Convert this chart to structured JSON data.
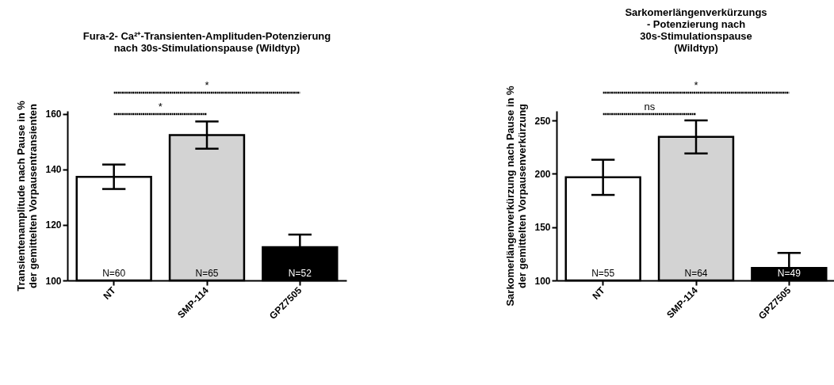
{
  "chart_data": [
    {
      "type": "bar",
      "title": "Fura-2- Ca²⁺-Transienten-Amplituden-Potenzierung\nnach 30s-Stimulationspause (Wildtyp)",
      "ylabel": "Transientenamplitude nach Pause in %\nder gemittelten Vorpausentransienten",
      "categories": [
        "NT",
        "SMP-114",
        "GPZ7505"
      ],
      "values": [
        137.3,
        152.3,
        112.0
      ],
      "errors": [
        4.4,
        4.9,
        [
          112.0,
          116.5
        ]
      ],
      "colors": [
        "#ffffff",
        "#d3d3d3",
        "#000000"
      ],
      "ylim": [
        100,
        161
      ],
      "yticks": [
        100,
        120,
        140,
        160
      ],
      "annotations": [
        "*",
        "*",
        "N=60",
        "N=65",
        "N=52"
      ],
      "grid": false,
      "legend": false
    },
    {
      "type": "bar",
      "title": "Sarkomerlängenverkürzungs\n- Potenzierung nach\n30s-Stimulationspause\n(Wildtyp)",
      "ylabel": "Sarkomerlängenverkürzung nach Pause in %\nder gemittelten Vorpausenverkürzung",
      "categories": [
        "NT",
        "SMP-114",
        "GPZ7505"
      ],
      "values": [
        196.7,
        234.6,
        111.7
      ],
      "errors": [
        16.5,
        15.5,
        [
          111.7,
          125.8
        ]
      ],
      "colors": [
        "#ffffff",
        "#d3d3d3",
        "#000000"
      ],
      "ylim": [
        100,
        259
      ],
      "yticks": [
        100,
        150,
        200,
        250
      ],
      "annotations": [
        "ns",
        "*",
        "N=55",
        "N=64",
        "N=49"
      ],
      "grid": false,
      "legend": false
    }
  ]
}
